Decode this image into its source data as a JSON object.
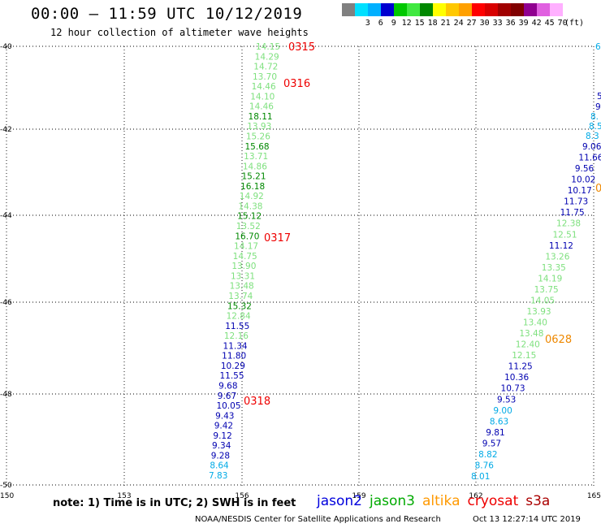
{
  "header": {
    "title": "00:00 – 11:59 UTC 10/12/2019",
    "subtitle": "12 hour collection of altimeter wave heights"
  },
  "legend": {
    "unit": "(ft)",
    "entries": [
      {
        "label": "",
        "color": "#808080"
      },
      {
        "label": "3",
        "color": "#00e0ff"
      },
      {
        "label": "6",
        "color": "#00b0ff"
      },
      {
        "label": "9",
        "color": "#0000d0"
      },
      {
        "label": "12",
        "color": "#00c800"
      },
      {
        "label": "15",
        "color": "#40e840"
      },
      {
        "label": "18",
        "color": "#008800"
      },
      {
        "label": "21",
        "color": "#ffff00"
      },
      {
        "label": "24",
        "color": "#ffc800"
      },
      {
        "label": "27",
        "color": "#ffa000"
      },
      {
        "label": "30",
        "color": "#ff0000"
      },
      {
        "label": "33",
        "color": "#d80000"
      },
      {
        "label": "36",
        "color": "#a00000"
      },
      {
        "label": "39",
        "color": "#800000"
      },
      {
        "label": "42",
        "color": "#900090"
      },
      {
        "label": "45",
        "color": "#e060e0"
      },
      {
        "label": "70",
        "color": "#ffb0ff"
      }
    ]
  },
  "axes": {
    "lon_ticks": [
      "150",
      "153",
      "156",
      "159",
      "162",
      "165"
    ],
    "lat_ticks": [
      "-40",
      "-42",
      "-44",
      "-46",
      "-48",
      "-50"
    ]
  },
  "colors": {
    "green": "#33cc33",
    "light_green": "#7ee07e",
    "dark_green": "#008800",
    "blue": "#0000b0",
    "cyan": "#00aae6",
    "orbit_red": "#ee0000",
    "orbit_orange": "#ee8800"
  },
  "track_west": [
    {
      "v": "14.15",
      "c": "light_green"
    },
    {
      "v": "14.29",
      "c": "light_green"
    },
    {
      "v": "14.72",
      "c": "light_green"
    },
    {
      "v": "13.70",
      "c": "light_green"
    },
    {
      "v": "14.46",
      "c": "light_green"
    },
    {
      "v": "14.10",
      "c": "light_green"
    },
    {
      "v": "14.46",
      "c": "light_green"
    },
    {
      "v": "18.11",
      "c": "dark_green"
    },
    {
      "v": "13.93",
      "c": "light_green"
    },
    {
      "v": "15.26",
      "c": "light_green"
    },
    {
      "v": "15.68",
      "c": "dark_green"
    },
    {
      "v": "13.71",
      "c": "light_green"
    },
    {
      "v": "14.86",
      "c": "light_green"
    },
    {
      "v": "15.21",
      "c": "dark_green"
    },
    {
      "v": "16.18",
      "c": "dark_green"
    },
    {
      "v": "14.92",
      "c": "light_green"
    },
    {
      "v": "14.38",
      "c": "light_green"
    },
    {
      "v": "15.12",
      "c": "dark_green"
    },
    {
      "v": "13.52",
      "c": "light_green"
    },
    {
      "v": "16.70",
      "c": "dark_green"
    },
    {
      "v": "14.17",
      "c": "light_green"
    },
    {
      "v": "14.75",
      "c": "light_green"
    },
    {
      "v": "13.90",
      "c": "light_green"
    },
    {
      "v": "13.31",
      "c": "light_green"
    },
    {
      "v": "13.48",
      "c": "light_green"
    },
    {
      "v": "13.74",
      "c": "light_green"
    },
    {
      "v": "15.32",
      "c": "dark_green"
    },
    {
      "v": "12.84",
      "c": "light_green"
    },
    {
      "v": "11.55",
      "c": "blue"
    },
    {
      "v": "12.16",
      "c": "light_green"
    },
    {
      "v": "11.34",
      "c": "blue"
    },
    {
      "v": "11.80",
      "c": "blue"
    },
    {
      "v": "10.29",
      "c": "blue"
    },
    {
      "v": "11.55",
      "c": "blue"
    },
    {
      "v": "9.68",
      "c": "blue"
    },
    {
      "v": "9.67",
      "c": "blue"
    },
    {
      "v": "10.05",
      "c": "blue"
    },
    {
      "v": "9.43",
      "c": "blue"
    },
    {
      "v": "9.42",
      "c": "blue"
    },
    {
      "v": "9.12",
      "c": "blue"
    },
    {
      "v": "9.34",
      "c": "blue"
    },
    {
      "v": "9.28",
      "c": "blue"
    },
    {
      "v": "8.64",
      "c": "cyan"
    },
    {
      "v": "7.83",
      "c": "cyan"
    }
  ],
  "track_east": [
    {
      "v": "9.06",
      "c": "blue"
    },
    {
      "v": "11.66",
      "c": "blue"
    },
    {
      "v": "9.56",
      "c": "blue"
    },
    {
      "v": "10.02",
      "c": "blue"
    },
    {
      "v": "10.17",
      "c": "blue"
    },
    {
      "v": "11.73",
      "c": "blue"
    },
    {
      "v": "11.75",
      "c": "blue"
    },
    {
      "v": "12.38",
      "c": "light_green"
    },
    {
      "v": "12.51",
      "c": "light_green"
    },
    {
      "v": "11.12",
      "c": "blue"
    },
    {
      "v": "13.26",
      "c": "light_green"
    },
    {
      "v": "13.35",
      "c": "light_green"
    },
    {
      "v": "14.19",
      "c": "light_green"
    },
    {
      "v": "13.75",
      "c": "light_green"
    },
    {
      "v": "14.05",
      "c": "light_green"
    },
    {
      "v": "13.93",
      "c": "light_green"
    },
    {
      "v": "13.40",
      "c": "light_green"
    },
    {
      "v": "13.48",
      "c": "light_green"
    },
    {
      "v": "12.40",
      "c": "light_green"
    },
    {
      "v": "12.15",
      "c": "light_green"
    },
    {
      "v": "11.25",
      "c": "blue"
    },
    {
      "v": "10.36",
      "c": "blue"
    },
    {
      "v": "10.73",
      "c": "blue"
    },
    {
      "v": "9.53",
      "c": "blue"
    },
    {
      "v": "9.00",
      "c": "cyan"
    },
    {
      "v": "8.63",
      "c": "cyan"
    },
    {
      "v": "9.81",
      "c": "blue"
    },
    {
      "v": "9.57",
      "c": "blue"
    },
    {
      "v": "8.82",
      "c": "cyan"
    },
    {
      "v": "8.76",
      "c": "cyan"
    },
    {
      "v": "8.01",
      "c": "cyan"
    }
  ],
  "track_edge": [
    {
      "v": "6",
      "c": "cyan"
    },
    {
      "v": "5",
      "c": "blue"
    },
    {
      "v": "9",
      "c": "blue"
    },
    {
      "v": "8.",
      "c": "cyan"
    },
    {
      "v": "8.5",
      "c": "cyan"
    },
    {
      "v": "8.3",
      "c": "cyan"
    }
  ],
  "orbits": [
    {
      "label": "0315",
      "c": "orbit_red"
    },
    {
      "label": "0316",
      "c": "orbit_red"
    },
    {
      "label": "0317",
      "c": "orbit_red"
    },
    {
      "label": "0318",
      "c": "orbit_red"
    },
    {
      "label": "0628",
      "c": "orbit_orange"
    },
    {
      "label": "0",
      "c": "orbit_orange"
    }
  ],
  "footer": {
    "note": "note: 1) Time is in UTC; 2) SWH is in feet",
    "satellites": [
      {
        "name": "jason2",
        "color": "#0000dd"
      },
      {
        "name": "jason3",
        "color": "#00aa00"
      },
      {
        "name": "altika",
        "color": "#ff9900"
      },
      {
        "name": "cryosat",
        "color": "#ee0000"
      },
      {
        "name": "s3a",
        "color": "#aa0000"
      }
    ],
    "credit": "NOAA/NESDIS Center for Satellite Applications and Research",
    "timestamp": "Oct 13 12:27:14 UTC 2019"
  }
}
